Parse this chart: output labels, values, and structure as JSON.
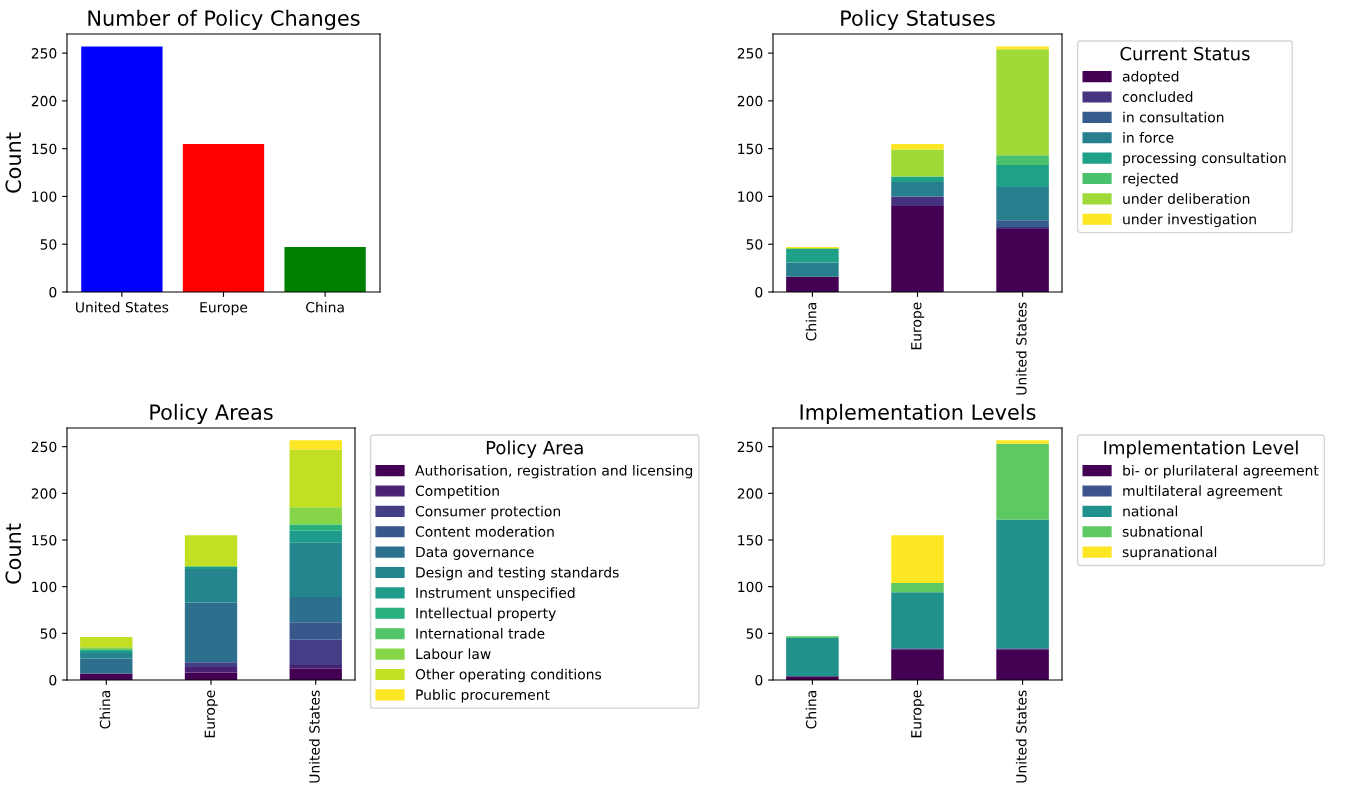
{
  "chart_data": [
    {
      "type": "bar",
      "title": "Number of Policy Changes",
      "ylabel": "Count",
      "categories": [
        "United States",
        "Europe",
        "China"
      ],
      "values": [
        257,
        155,
        47
      ],
      "colors": [
        "#0000ff",
        "#ff0000",
        "#008000"
      ],
      "ylim": [
        0,
        270
      ],
      "yticks": [
        0,
        50,
        100,
        150,
        200,
        250
      ],
      "grid": false,
      "legend": false
    },
    {
      "type": "bar",
      "title": "Policy Statuses",
      "stacked": true,
      "legend": "right",
      "legend_title": "Current Status",
      "categories": [
        "China",
        "Europe",
        "United States"
      ],
      "ylim": [
        0,
        270
      ],
      "yticks": [
        0,
        50,
        100,
        150,
        200,
        250
      ],
      "grid": false,
      "series": [
        {
          "name": "adopted",
          "color": "#440154",
          "values": [
            16,
            90,
            66
          ]
        },
        {
          "name": "concluded",
          "color": "#46327e",
          "values": [
            0,
            10,
            2
          ]
        },
        {
          "name": "in consultation",
          "color": "#365c8d",
          "values": [
            0,
            0,
            7
          ]
        },
        {
          "name": "in force",
          "color": "#277f8e",
          "values": [
            15,
            15,
            35
          ]
        },
        {
          "name": "processing consultation",
          "color": "#1fa187",
          "values": [
            14,
            6,
            23
          ]
        },
        {
          "name": "rejected",
          "color": "#4ac16d",
          "values": [
            0,
            0,
            10
          ]
        },
        {
          "name": "under deliberation",
          "color": "#a0da39",
          "values": [
            1,
            28,
            111
          ]
        },
        {
          "name": "under investigation",
          "color": "#fde725",
          "values": [
            1,
            6,
            3
          ]
        }
      ]
    },
    {
      "type": "bar",
      "title": "Policy Areas",
      "ylabel": "Count",
      "stacked": true,
      "legend": "right",
      "legend_title": "Policy Area",
      "categories": [
        "China",
        "Europe",
        "United States"
      ],
      "ylim": [
        0,
        270
      ],
      "yticks": [
        0,
        50,
        100,
        150,
        200,
        250
      ],
      "grid": false,
      "series": [
        {
          "name": "Authorisation, registration and licensing",
          "color": "#440154",
          "values": [
            7,
            8,
            12
          ]
        },
        {
          "name": "Competition",
          "color": "#482173",
          "values": [
            null,
            6,
            4
          ]
        },
        {
          "name": "Consumer protection",
          "color": "#433e85",
          "values": [
            0,
            5,
            27
          ]
        },
        {
          "name": "Content moderation",
          "color": "#38588c",
          "values": [
            0,
            0,
            19
          ]
        },
        {
          "name": "Data governance",
          "color": "#2d708e",
          "values": [
            16,
            64,
            27
          ]
        },
        {
          "name": "Design and testing standards",
          "color": "#25858e",
          "values": [
            6,
            36,
            58
          ]
        },
        {
          "name": "Instrument unspecified",
          "color": "#1e9b8a",
          "values": [
            2,
            2,
            13
          ]
        },
        {
          "name": "Intellectual property",
          "color": "#2ab07f",
          "values": [
            2,
            1,
            6
          ]
        },
        {
          "name": "International trade",
          "color": "#52c569",
          "values": [
            0,
            0,
            1
          ]
        },
        {
          "name": "Labour law",
          "color": "#86d549",
          "values": [
            2,
            0,
            18
          ]
        },
        {
          "name": "Other operating conditions",
          "color": "#c2df23",
          "values": [
            11,
            33,
            62
          ]
        },
        {
          "name": "Public procurement",
          "color": "#fde725",
          "values": [
            0,
            0,
            10
          ]
        }
      ]
    },
    {
      "type": "bar",
      "title": "Implementation Levels",
      "stacked": true,
      "legend": "right",
      "legend_title": "Implementation Level",
      "categories": [
        "China",
        "Europe",
        "United States"
      ],
      "ylim": [
        0,
        270
      ],
      "yticks": [
        0,
        50,
        100,
        150,
        200,
        250
      ],
      "grid": false,
      "series": [
        {
          "name": "bi- or plurilateral agreement",
          "color": "#440154",
          "values": [
            4,
            33,
            33
          ]
        },
        {
          "name": "multilateral agreement",
          "color": "#3b528b",
          "values": [
            0,
            1,
            1
          ]
        },
        {
          "name": "national",
          "color": "#21918c",
          "values": [
            41,
            60,
            138
          ]
        },
        {
          "name": "subnational",
          "color": "#5ec962",
          "values": [
            2,
            10,
            81
          ]
        },
        {
          "name": "supranational",
          "color": "#fde725",
          "values": [
            0,
            51,
            4
          ]
        }
      ]
    }
  ]
}
